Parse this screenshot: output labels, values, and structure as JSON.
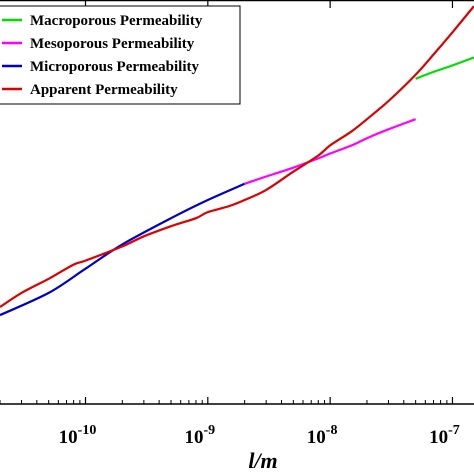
{
  "chart_data": {
    "type": "line",
    "xscale": "log",
    "xlim": [
      2e-11,
      1.5e-07
    ],
    "xticks": [
      {
        "value": 1e-10,
        "base": "10",
        "exp": "-10"
      },
      {
        "value": 1e-09,
        "base": "10",
        "exp": "-9"
      },
      {
        "value": 1e-08,
        "base": "10",
        "exp": "-8"
      },
      {
        "value": 1e-07,
        "base": "10",
        "exp": "-7"
      }
    ],
    "xlabel": "l/m",
    "ylabel": "",
    "title": "",
    "grid": false,
    "legend": {
      "position": "top-left"
    },
    "series": [
      {
        "name": "Macroporous Permeability",
        "color": "#00dd00",
        "x": [
          5e-08,
          7e-08,
          1e-07,
          1.5e-07
        ],
        "y": [
          0.805,
          0.822,
          0.838,
          0.858
        ]
      },
      {
        "name": "Mesoporous Permeability",
        "color": "#ff00ff",
        "x": [
          2e-09,
          3e-09,
          5e-09,
          8e-09,
          1e-08,
          1.5e-08,
          2e-08,
          3e-08,
          5e-08
        ],
        "y": [
          0.545,
          0.563,
          0.585,
          0.608,
          0.62,
          0.64,
          0.658,
          0.68,
          0.705
        ]
      },
      {
        "name": "Microporous Permeability",
        "color": "#0000cc",
        "x": [
          2e-11,
          5e-11,
          1e-10,
          2e-10,
          5e-10,
          1e-09,
          2e-09
        ],
        "y": [
          0.22,
          0.275,
          0.335,
          0.395,
          0.46,
          0.505,
          0.545
        ]
      },
      {
        "name": "Apparent Permeability",
        "color": "#dd0000",
        "x": [
          2e-11,
          3e-11,
          5e-11,
          8e-11,
          1e-10,
          2e-10,
          3e-10,
          5e-10,
          8e-10,
          1e-09,
          1.5e-09,
          2e-09,
          3e-09,
          5e-09,
          8e-09,
          1e-08,
          1.5e-08,
          2e-08,
          3e-08,
          5e-08,
          7e-08,
          1e-07,
          1.5e-07
        ],
        "y": [
          0.24,
          0.275,
          0.31,
          0.345,
          0.355,
          0.39,
          0.415,
          0.44,
          0.46,
          0.475,
          0.49,
          0.505,
          0.53,
          0.575,
          0.615,
          0.64,
          0.675,
          0.705,
          0.75,
          0.815,
          0.865,
          0.92,
          0.985
        ]
      }
    ]
  }
}
